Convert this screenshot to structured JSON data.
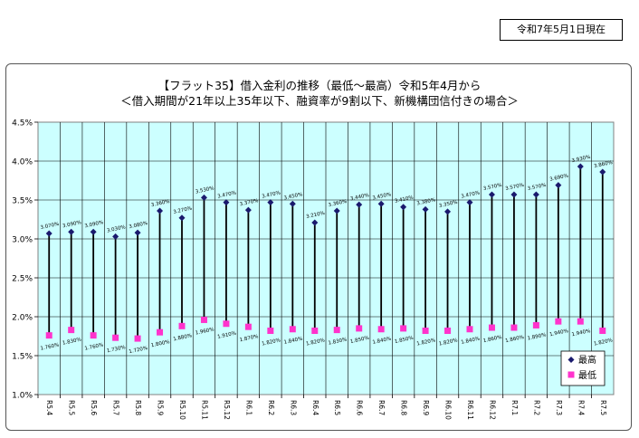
{
  "header": {
    "as_of_date": "令和7年5月1日現在"
  },
  "chart_data": {
    "type": "line",
    "title": "【フラット35】借入金利の推移（最低～最高）令和5年4月から",
    "subtitle": "＜借入期間が21年以上35年以下、融資率が9割以下、新機構団信付きの場合＞",
    "categories": [
      "R5.4",
      "R5.5",
      "R5.6",
      "R5.7",
      "R5.8",
      "R5.9",
      "R5.10",
      "R5.11",
      "R5.12",
      "R6.1",
      "R6.2",
      "R6.3",
      "R6.4",
      "R6.5",
      "R6.6",
      "R6.7",
      "R6.8",
      "R6.9",
      "R6.10",
      "R6.11",
      "R6.12",
      "R7.1",
      "R7.2",
      "R7.3",
      "R7.4",
      "R7.5"
    ],
    "series": [
      {
        "name": "最高",
        "color": "#1a1a6e",
        "marker": "diamond",
        "values": [
          3.07,
          3.09,
          3.09,
          3.03,
          3.08,
          3.36,
          3.27,
          3.53,
          3.47,
          3.37,
          3.47,
          3.45,
          3.21,
          3.36,
          3.44,
          3.45,
          3.41,
          3.38,
          3.35,
          3.47,
          3.57,
          3.57,
          3.57,
          3.69,
          3.93,
          3.86
        ],
        "labels": [
          "3.070%",
          "3.090%",
          "3.090%",
          "3.030%",
          "3.080%",
          "3.360%",
          "3.270%",
          "3.530%",
          "3.470%",
          "3.370%",
          "3.470%",
          "3.450%",
          "3.210%",
          "3.360%",
          "3.440%",
          "3.450%",
          "3.410%",
          "3.380%",
          "3.350%",
          "3.470%",
          "3.570%",
          "3.570%",
          "3.570%",
          "3.690%",
          "3.930%",
          "3.860%"
        ]
      },
      {
        "name": "最低",
        "color": "#ff33cc",
        "marker": "square",
        "values": [
          1.76,
          1.83,
          1.76,
          1.73,
          1.72,
          1.8,
          1.88,
          1.96,
          1.91,
          1.87,
          1.82,
          1.84,
          1.82,
          1.83,
          1.85,
          1.84,
          1.85,
          1.82,
          1.82,
          1.84,
          1.86,
          1.86,
          1.89,
          1.94,
          1.94,
          1.82
        ],
        "labels": [
          "1.760%",
          "1.830%",
          "1.760%",
          "1.730%",
          "1.720%",
          "1.800%",
          "1.880%",
          "1.960%",
          "1.910%",
          "1.870%",
          "1.820%",
          "1.840%",
          "1.820%",
          "1.830%",
          "1.850%",
          "1.840%",
          "1.850%",
          "1.820%",
          "1.820%",
          "1.840%",
          "1.860%",
          "1.860%",
          "1.890%",
          "1.940%",
          "1.940%",
          "1.820%"
        ]
      }
    ],
    "y_ticks": [
      "1.0%",
      "1.5%",
      "2.0%",
      "2.5%",
      "3.0%",
      "3.5%",
      "4.0%",
      "4.5%"
    ],
    "ylim": [
      1.0,
      4.5
    ],
    "grid": true,
    "plot_background": "#ccffff",
    "legend_position": "bottom-right"
  }
}
